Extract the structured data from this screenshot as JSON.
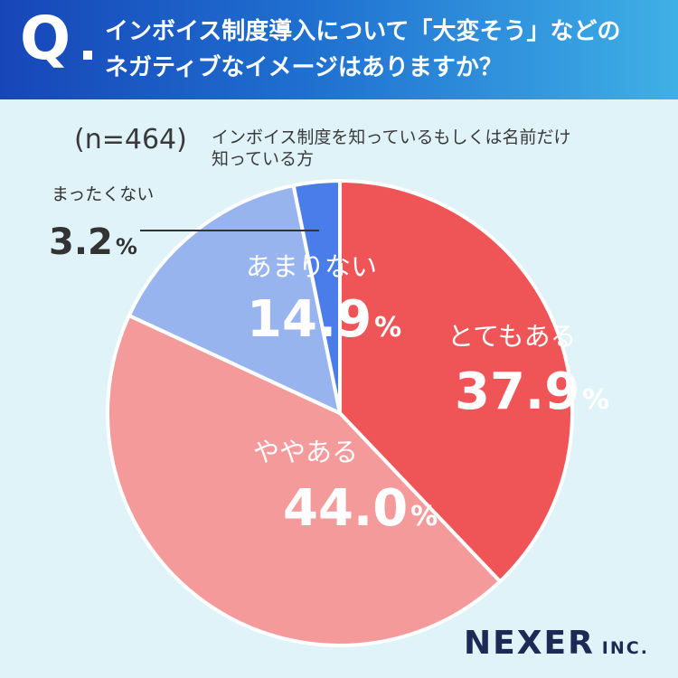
{
  "question": {
    "mark": "Q",
    "line1": "インボイス制度導入について「大変そう」などの",
    "line2": "ネガティブなイメージはありますか？"
  },
  "sample": {
    "n_label": "(n=464)",
    "description_line1": "インボイス制度を知っているもしくは名前だけ",
    "description_line2": "知っている方"
  },
  "chart_data": {
    "type": "pie",
    "start": "12 o'clock",
    "direction": "clockwise",
    "slices": [
      {
        "label": "とてもある",
        "value": 37.9,
        "display": "37.9",
        "unit": "%",
        "color": "#ef5557",
        "text_color": "#ffffff"
      },
      {
        "label": "ややある",
        "value": 44.0,
        "display": "44.0",
        "unit": "%",
        "color": "#f49a9b",
        "text_color": "#ffffff"
      },
      {
        "label": "あまりない",
        "value": 14.9,
        "display": "14.9",
        "unit": "%",
        "color": "#98b4ef",
        "text_color": "#ffffff"
      },
      {
        "label": "まったくない",
        "value": 3.2,
        "display": "3.2",
        "unit": "%",
        "color": "#4a7cea",
        "text_color": "#333333"
      }
    ]
  },
  "brand": {
    "name": "NEXER",
    "suffix": "INC."
  }
}
